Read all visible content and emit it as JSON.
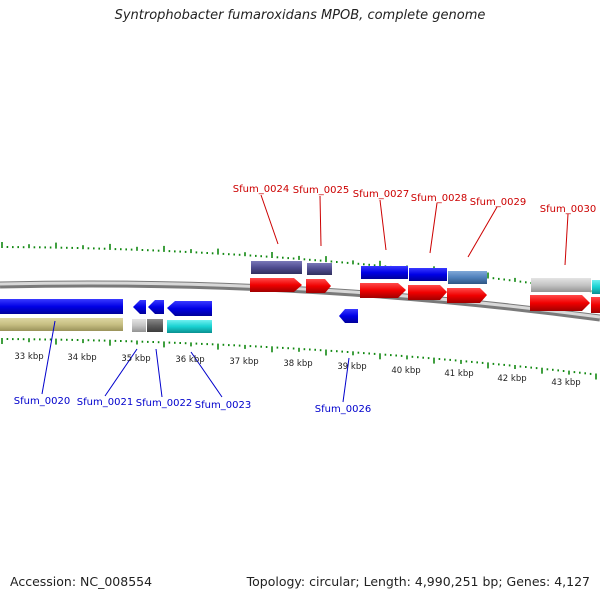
{
  "title": "Syntrophobacter fumaroxidans MPOB, complete genome",
  "footer": {
    "accession": "Accession: NC_008554",
    "topology": "Topology: circular; Length: 4,990,251 bp; Genes: 4,127"
  },
  "colors": {
    "top_label": "#cc0000",
    "bottom_label": "#0000cc",
    "tick": "#118811",
    "backbone": "#8c8c8c"
  },
  "kbp_labels": [
    "33 kbp",
    "34 kbp",
    "35 kbp",
    "36 kbp",
    "37 kbp",
    "38 kbp",
    "39 kbp",
    "40 kbp",
    "41 kbp",
    "42 kbp",
    "43 kbp"
  ],
  "top_labels": [
    "Sfum_0024",
    "Sfum_0025",
    "Sfum_0027",
    "Sfum_0028",
    "Sfum_0029",
    "Sfum_0030"
  ],
  "bottom_labels": [
    "Sfum_0020",
    "Sfum_0021",
    "Sfum_0022",
    "Sfum_0023",
    "Sfum_0026"
  ]
}
